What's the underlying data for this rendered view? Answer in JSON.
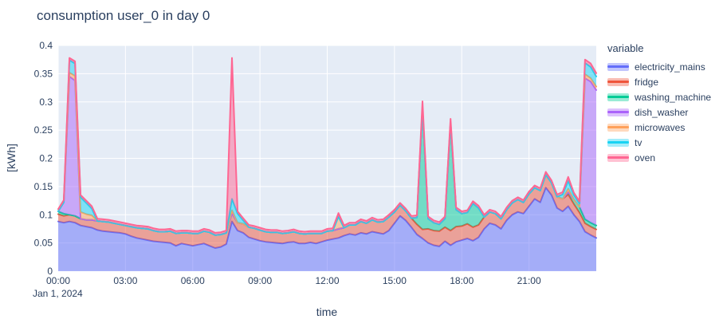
{
  "figure": {
    "x_date_label": "Jan 1, 2024"
  },
  "chart_data": {
    "type": "area",
    "stacked": true,
    "title": "consumption user_0 in day 0",
    "xlabel": "time",
    "ylabel": "[kWh]",
    "legend_title": "variable",
    "legend_position": "right",
    "grid": true,
    "plot_bg": "#E5ECF6",
    "grid_color": "#FFFFFF",
    "font_color": "#2a3f5f",
    "ylim": [
      0,
      0.4
    ],
    "y_ticks": [
      0,
      0.05,
      0.1,
      0.15,
      0.2,
      0.25,
      0.3,
      0.35,
      0.4
    ],
    "y_tick_labels": [
      "0",
      "0.05",
      "0.1",
      "0.15",
      "0.2",
      "0.25",
      "0.3",
      "0.35",
      "0.4"
    ],
    "x_start_hour": 0,
    "x_end_hour": 24,
    "x_step_minutes": 15,
    "x_tick_hours": [
      0,
      3,
      6,
      9,
      12,
      15,
      18,
      21
    ],
    "x_tick_labels": [
      "00:00",
      "03:00",
      "06:00",
      "09:00",
      "12:00",
      "15:00",
      "18:00",
      "21:00"
    ],
    "x_date_label": "Jan 1, 2024",
    "series": [
      {
        "name": "electricity_mains",
        "color": "#636EFA",
        "values": [
          0.088,
          0.086,
          0.088,
          0.086,
          0.081,
          0.079,
          0.077,
          0.073,
          0.071,
          0.07,
          0.069,
          0.068,
          0.066,
          0.062,
          0.059,
          0.057,
          0.055,
          0.053,
          0.052,
          0.051,
          0.05,
          0.045,
          0.049,
          0.047,
          0.045,
          0.047,
          0.049,
          0.045,
          0.041,
          0.043,
          0.048,
          0.088,
          0.072,
          0.068,
          0.06,
          0.057,
          0.054,
          0.052,
          0.051,
          0.05,
          0.049,
          0.051,
          0.052,
          0.049,
          0.049,
          0.051,
          0.049,
          0.052,
          0.055,
          0.057,
          0.059,
          0.063,
          0.066,
          0.064,
          0.068,
          0.066,
          0.07,
          0.068,
          0.066,
          0.072,
          0.085,
          0.098,
          0.09,
          0.078,
          0.065,
          0.058,
          0.05,
          0.046,
          0.044,
          0.053,
          0.046,
          0.052,
          0.055,
          0.058,
          0.054,
          0.06,
          0.075,
          0.085,
          0.082,
          0.075,
          0.09,
          0.1,
          0.105,
          0.102,
          0.115,
          0.128,
          0.122,
          0.148,
          0.135,
          0.112,
          0.106,
          0.115,
          0.1,
          0.088,
          0.07,
          0.064,
          0.059
        ]
      },
      {
        "name": "fridge",
        "color": "#EF553B",
        "values": [
          0.013,
          0.012,
          0.012,
          0.012,
          0.012,
          0.012,
          0.014,
          0.016,
          0.017,
          0.017,
          0.016,
          0.015,
          0.015,
          0.017,
          0.018,
          0.019,
          0.02,
          0.019,
          0.018,
          0.019,
          0.021,
          0.022,
          0.019,
          0.021,
          0.022,
          0.02,
          0.022,
          0.024,
          0.023,
          0.022,
          0.02,
          0.015,
          0.014,
          0.016,
          0.018,
          0.019,
          0.019,
          0.018,
          0.018,
          0.019,
          0.018,
          0.017,
          0.018,
          0.018,
          0.017,
          0.016,
          0.018,
          0.015,
          0.016,
          0.015,
          0.016,
          0.014,
          0.016,
          0.018,
          0.02,
          0.019,
          0.021,
          0.019,
          0.022,
          0.024,
          0.02,
          0.019,
          0.017,
          0.016,
          0.018,
          0.016,
          0.025,
          0.026,
          0.027,
          0.025,
          0.026,
          0.027,
          0.025,
          0.026,
          0.024,
          0.022,
          0.021,
          0.02,
          0.02,
          0.018,
          0.019,
          0.021,
          0.022,
          0.02,
          0.022,
          0.02,
          0.021,
          0.023,
          0.022,
          0.02,
          0.022,
          0.021,
          0.019,
          0.016,
          0.015,
          0.015,
          0.015
        ]
      },
      {
        "name": "washing_machine",
        "color": "#00CC96",
        "values": [
          0.005,
          0.004,
          0,
          0,
          0,
          0,
          0,
          0,
          0,
          0,
          0,
          0,
          0,
          0,
          0,
          0,
          0,
          0,
          0,
          0,
          0,
          0,
          0,
          0,
          0,
          0,
          0,
          0,
          0,
          0,
          0,
          0,
          0,
          0,
          0,
          0,
          0,
          0,
          0,
          0,
          0,
          0,
          0,
          0,
          0,
          0,
          0,
          0,
          0,
          0,
          0,
          0,
          0,
          0,
          0,
          0,
          0,
          0,
          0,
          0,
          0,
          0,
          0,
          0,
          0.012,
          0.215,
          0.018,
          0.014,
          0.012,
          0.015,
          0.19,
          0.03,
          0.022,
          0.02,
          0.042,
          0.03,
          0,
          0,
          0,
          0,
          0,
          0,
          0,
          0,
          0,
          0,
          0,
          0,
          0,
          0,
          0,
          0.004,
          0.008,
          0.01,
          0.007,
          0.007,
          0.007
        ]
      },
      {
        "name": "dish_washer",
        "color": "#AB63FA",
        "values": [
          0,
          0.02,
          0.245,
          0.24,
          0,
          0,
          0,
          0,
          0,
          0,
          0,
          0,
          0,
          0,
          0,
          0,
          0,
          0,
          0,
          0,
          0,
          0,
          0,
          0,
          0,
          0,
          0,
          0,
          0,
          0,
          0,
          0,
          0,
          0,
          0,
          0,
          0,
          0,
          0,
          0,
          0,
          0,
          0,
          0,
          0,
          0,
          0,
          0,
          0,
          0,
          0,
          0,
          0,
          0,
          0,
          0,
          0,
          0,
          0,
          0,
          0,
          0,
          0,
          0,
          0,
          0,
          0,
          0,
          0,
          0,
          0,
          0,
          0,
          0,
          0,
          0,
          0,
          0,
          0,
          0,
          0,
          0,
          0,
          0,
          0,
          0,
          0,
          0,
          0,
          0,
          0,
          0,
          0,
          0,
          0.25,
          0.25,
          0.24
        ]
      },
      {
        "name": "microwaves",
        "color": "#FFA15A",
        "values": [
          0,
          0,
          0.007,
          0.008,
          0.012,
          0.01,
          0.008,
          0,
          0,
          0,
          0,
          0,
          0,
          0,
          0,
          0,
          0,
          0,
          0,
          0,
          0,
          0,
          0,
          0,
          0,
          0,
          0,
          0,
          0,
          0,
          0,
          0.005,
          0,
          0,
          0,
          0,
          0,
          0,
          0,
          0,
          0,
          0,
          0,
          0,
          0,
          0,
          0,
          0,
          0,
          0,
          0.022,
          0,
          0,
          0,
          0,
          0,
          0,
          0,
          0,
          0,
          0,
          0,
          0,
          0,
          0,
          0,
          0,
          0,
          0,
          0,
          0,
          0,
          0,
          0,
          0,
          0,
          0,
          0,
          0,
          0,
          0,
          0,
          0,
          0,
          0,
          0,
          0,
          0,
          0,
          0,
          0,
          0.006,
          0,
          0,
          0.007,
          0.006,
          0.006
        ]
      },
      {
        "name": "tv",
        "color": "#19D3F3",
        "values": [
          0,
          0,
          0.022,
          0.022,
          0.026,
          0.02,
          0.012,
          0,
          0,
          0,
          0,
          0,
          0,
          0,
          0,
          0,
          0,
          0,
          0,
          0,
          0,
          0,
          0,
          0,
          0,
          0,
          0,
          0,
          0,
          0,
          0,
          0.02,
          0.016,
          0.006,
          0,
          0,
          0,
          0,
          0,
          0,
          0,
          0,
          0,
          0,
          0,
          0,
          0,
          0,
          0,
          0,
          0,
          0,
          0,
          0,
          0,
          0,
          0,
          0,
          0,
          0,
          0,
          0,
          0,
          0,
          0,
          0,
          0,
          0,
          0,
          0,
          0,
          0,
          0,
          0,
          0,
          0,
          0,
          0,
          0,
          0,
          0,
          0,
          0,
          0,
          0,
          0,
          0,
          0,
          0,
          0,
          0.008,
          0.014,
          0.008,
          0.006,
          0.02,
          0.02,
          0.018
        ]
      },
      {
        "name": "oven",
        "color": "#FF6692",
        "values": [
          0.004,
          0.004,
          0.004,
          0.004,
          0.004,
          0.004,
          0.004,
          0.004,
          0.004,
          0.004,
          0.004,
          0.004,
          0.004,
          0.004,
          0.004,
          0.004,
          0.004,
          0.004,
          0.004,
          0.004,
          0.004,
          0.004,
          0.004,
          0.004,
          0.004,
          0.004,
          0.004,
          0.004,
          0.004,
          0.004,
          0.004,
          0.25,
          0.004,
          0.004,
          0.004,
          0.004,
          0.004,
          0.004,
          0.004,
          0.004,
          0.004,
          0.004,
          0.004,
          0.004,
          0.004,
          0.004,
          0.004,
          0.004,
          0.004,
          0.004,
          0.006,
          0.004,
          0.004,
          0.004,
          0.004,
          0.004,
          0.004,
          0.004,
          0.004,
          0.004,
          0.004,
          0.004,
          0.004,
          0.004,
          0.004,
          0.012,
          0.004,
          0.004,
          0.004,
          0.004,
          0.008,
          0.004,
          0.004,
          0.004,
          0.004,
          0.004,
          0.004,
          0.004,
          0.004,
          0.004,
          0.004,
          0.004,
          0.004,
          0.004,
          0.004,
          0.004,
          0.004,
          0.005,
          0.004,
          0.004,
          0.004,
          0.007,
          0.004,
          0.004,
          0.006,
          0.006,
          0.006
        ]
      }
    ]
  }
}
